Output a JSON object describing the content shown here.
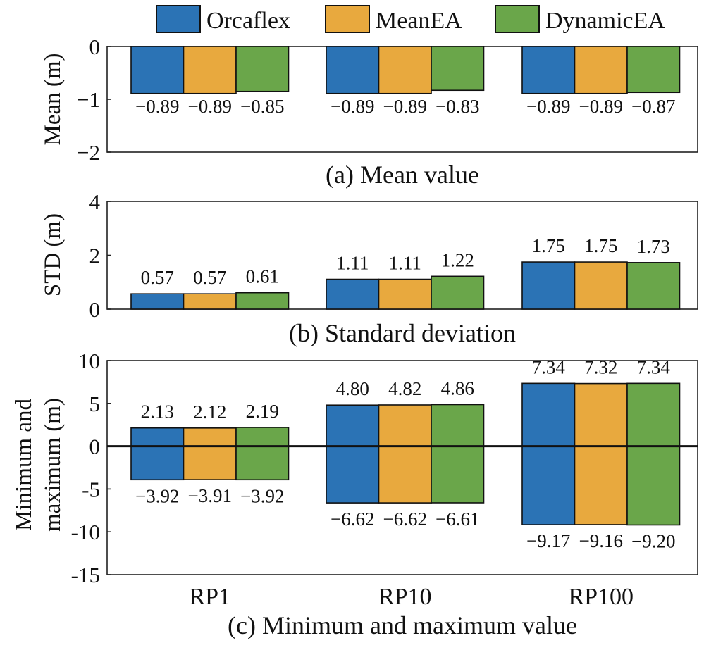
{
  "colors": {
    "Orcaflex": "#2b73b5",
    "MeanEA": "#e8a93e",
    "DynamicEA": "#6aa64a"
  },
  "legend": [
    "Orcaflex",
    "MeanEA",
    "DynamicEA"
  ],
  "chart_data": [
    {
      "type": "bar",
      "title": "(a) Mean value",
      "ylabel": "Mean (m)",
      "ylim": [
        -2,
        0
      ],
      "yticks": [
        "0",
        "−1",
        "−2"
      ],
      "categories": [
        "RP1",
        "RP10",
        "RP100"
      ],
      "series": [
        {
          "name": "Orcaflex",
          "values": [
            -0.89,
            -0.89,
            -0.89
          ],
          "labels": [
            "−0.89",
            "−0.89",
            "−0.89"
          ]
        },
        {
          "name": "MeanEA",
          "values": [
            -0.89,
            -0.89,
            -0.89
          ],
          "labels": [
            "−0.89",
            "−0.89",
            "−0.89"
          ]
        },
        {
          "name": "DynamicEA",
          "values": [
            -0.85,
            -0.83,
            -0.87
          ],
          "labels": [
            "−0.85",
            "−0.83",
            "−0.87"
          ]
        }
      ]
    },
    {
      "type": "bar",
      "title": "(b) Standard deviation",
      "ylabel": "STD (m)",
      "ylim": [
        0,
        4
      ],
      "yticks": [
        "4",
        "2",
        "0"
      ],
      "categories": [
        "RP1",
        "RP10",
        "RP100"
      ],
      "series": [
        {
          "name": "Orcaflex",
          "values": [
            0.57,
            1.11,
            1.75
          ],
          "labels": [
            "0.57",
            "1.11",
            "1.75"
          ]
        },
        {
          "name": "MeanEA",
          "values": [
            0.57,
            1.11,
            1.75
          ],
          "labels": [
            "0.57",
            "1.11",
            "1.75"
          ]
        },
        {
          "name": "DynamicEA",
          "values": [
            0.61,
            1.22,
            1.73
          ],
          "labels": [
            "0.61",
            "1.22",
            "1.73"
          ]
        }
      ]
    },
    {
      "type": "bar",
      "title": "(c) Minimum and maximum value",
      "ylabel": [
        "Minimum and",
        "maximum (m)"
      ],
      "ylim": [
        -15,
        10
      ],
      "yticks": [
        "10",
        "5",
        "0",
        "-5",
        "-10",
        "-15"
      ],
      "categories": [
        "RP1",
        "RP10",
        "RP100"
      ],
      "series": [
        {
          "name": "Orcaflex",
          "max": [
            2.13,
            4.8,
            7.34
          ],
          "min": [
            -3.92,
            -6.62,
            -9.17
          ],
          "max_labels": [
            "2.13",
            "4.80",
            "7.34"
          ],
          "min_labels": [
            "−3.92",
            "−6.62",
            "−9.17"
          ]
        },
        {
          "name": "MeanEA",
          "max": [
            2.12,
            4.82,
            7.32
          ],
          "min": [
            -3.91,
            -6.62,
            -9.16
          ],
          "max_labels": [
            "2.12",
            "4.82",
            "7.32"
          ],
          "min_labels": [
            "−3.91",
            "−6.62",
            "−9.16"
          ]
        },
        {
          "name": "DynamicEA",
          "max": [
            2.19,
            4.86,
            7.34
          ],
          "min": [
            -3.92,
            -6.61,
            -9.2
          ],
          "max_labels": [
            "2.19",
            "4.86",
            "7.34"
          ],
          "min_labels": [
            "−3.92",
            "−6.61",
            "−9.20"
          ]
        }
      ]
    }
  ]
}
